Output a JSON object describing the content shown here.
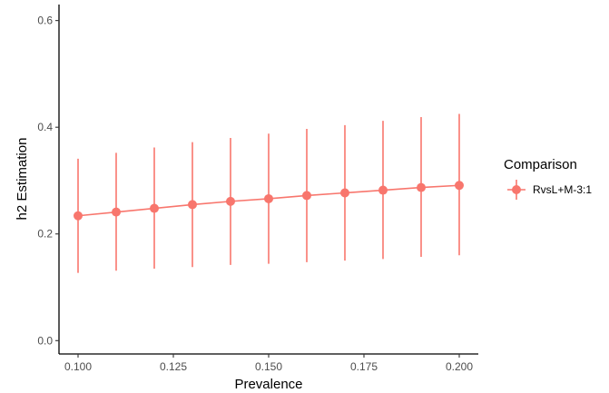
{
  "chart_data": {
    "type": "line",
    "title": "",
    "xlabel": "Prevalence",
    "ylabel": "h2 Estimation",
    "x": [
      0.1,
      0.11,
      0.12,
      0.13,
      0.14,
      0.15,
      0.16,
      0.17,
      0.18,
      0.19,
      0.2
    ],
    "xlim": [
      0.095,
      0.205
    ],
    "ylim": [
      -0.025,
      0.63
    ],
    "xticks": [
      0.1,
      0.125,
      0.15,
      0.175,
      0.2
    ],
    "xtick_labels": [
      "0.100",
      "0.125",
      "0.150",
      "0.175",
      "0.200"
    ],
    "yticks": [
      0.0,
      0.2,
      0.4,
      0.6
    ],
    "ytick_labels": [
      "0.0",
      "0.2",
      "0.4",
      "0.6"
    ],
    "grid": false,
    "legend": {
      "title": "Comparison",
      "placement": "right"
    },
    "series": [
      {
        "name": "RvsL+M-3:1",
        "color": "#F8766D",
        "values": [
          0.234,
          0.241,
          0.248,
          0.255,
          0.261,
          0.266,
          0.272,
          0.277,
          0.282,
          0.287,
          0.291
        ],
        "lower": [
          0.127,
          0.131,
          0.135,
          0.138,
          0.142,
          0.144,
          0.147,
          0.15,
          0.153,
          0.157,
          0.16
        ],
        "upper": [
          0.341,
          0.352,
          0.362,
          0.372,
          0.38,
          0.388,
          0.397,
          0.404,
          0.412,
          0.419,
          0.425
        ]
      }
    ]
  }
}
